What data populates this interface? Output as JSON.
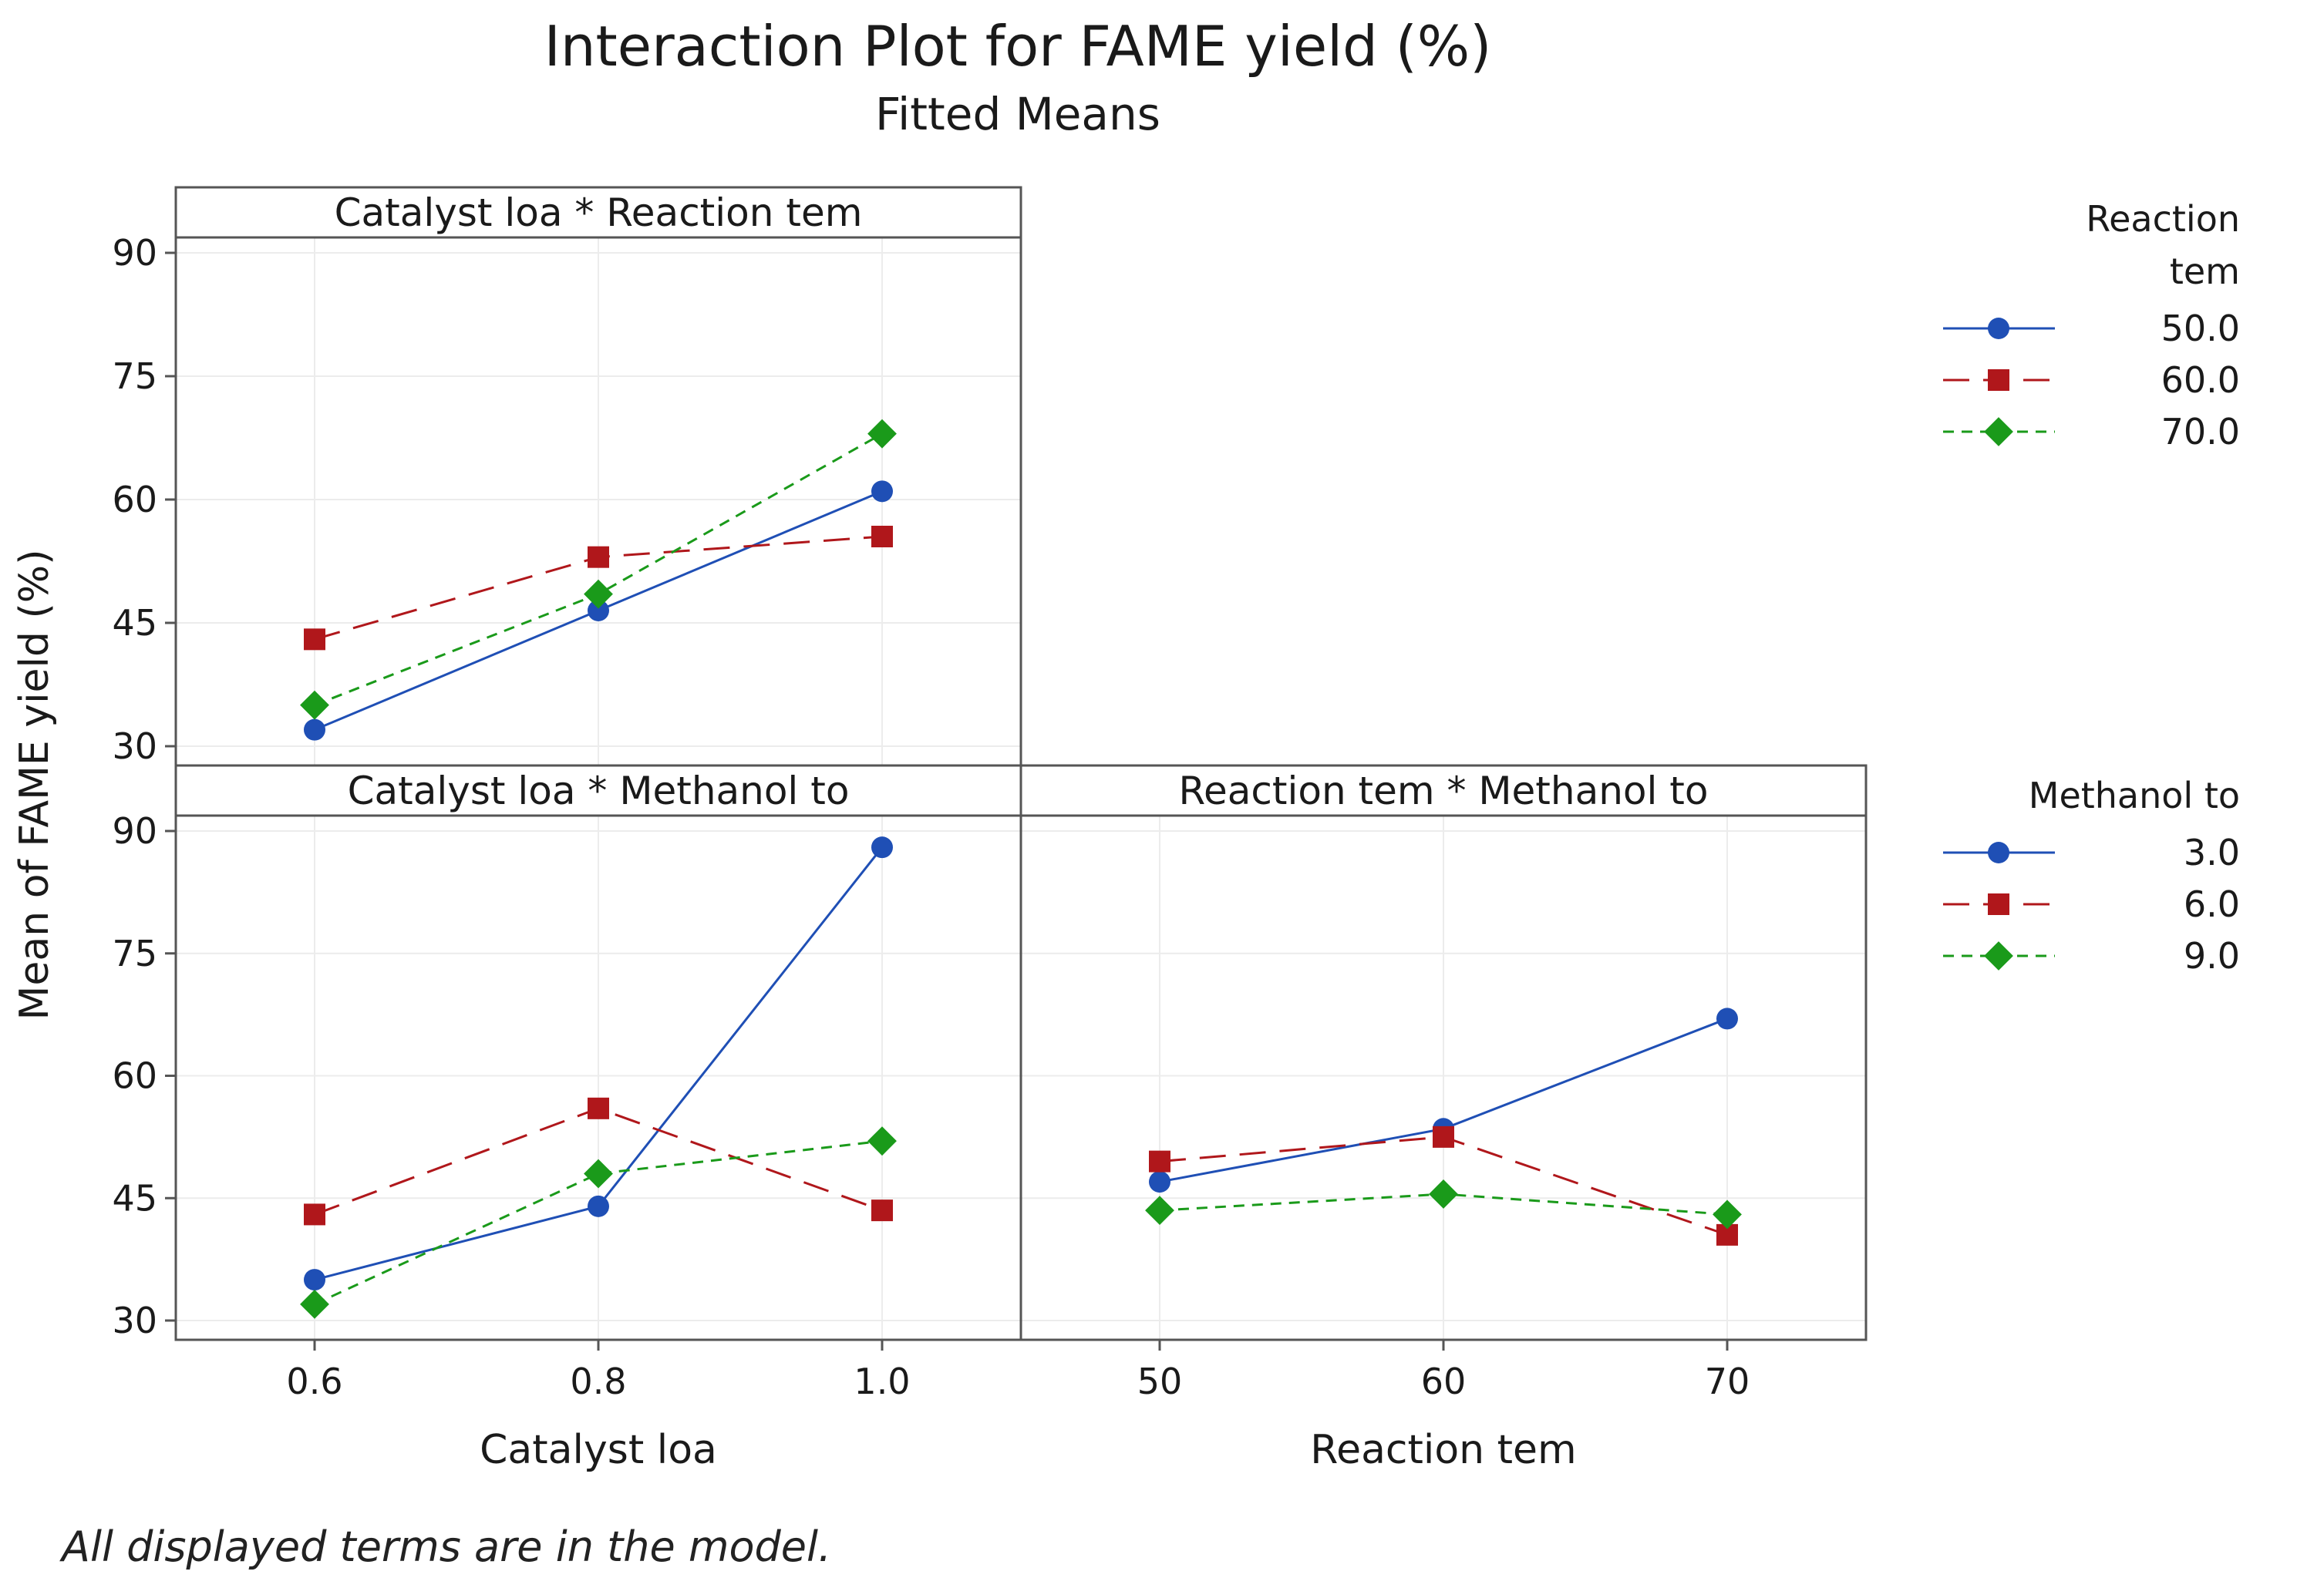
{
  "chart_data": {
    "type": "line",
    "title": "Interaction Plot for FAME yield (%)",
    "subtitle": "Fitted Means",
    "ylabel": "Mean of FAME yield (%)",
    "ylim": [
      30,
      90
    ],
    "yticks": [
      30,
      45,
      60,
      75,
      90
    ],
    "footnote": "All displayed terms are in the model.",
    "legends": [
      {
        "id": "reaction",
        "title": [
          "Reaction",
          "tem"
        ],
        "entries": [
          "50.0",
          "60.0",
          "70.0"
        ]
      },
      {
        "id": "methanol",
        "title": [
          "Methanol to"
        ],
        "entries": [
          "3.0",
          "6.0",
          "9.0"
        ]
      }
    ],
    "panels": [
      {
        "id": "top-left",
        "title": "Catalyst loa * Reaction tem",
        "xlabel": "",
        "x": [
          0.6,
          0.8,
          1.0
        ],
        "xticks": [],
        "legend": "reaction",
        "series": [
          {
            "name": "50.0",
            "values": [
              32.0,
              46.5,
              61.0
            ]
          },
          {
            "name": "60.0",
            "values": [
              43.0,
              53.0,
              55.5
            ]
          },
          {
            "name": "70.0",
            "values": [
              35.0,
              48.5,
              68.0
            ]
          }
        ]
      },
      {
        "id": "bottom-left",
        "title": "Catalyst loa * Methanol to",
        "xlabel": "Catalyst loa",
        "x": [
          0.6,
          0.8,
          1.0
        ],
        "xticks": [
          "0.6",
          "0.8",
          "1.0"
        ],
        "legend": "methanol",
        "series": [
          {
            "name": "3.0",
            "values": [
              35.0,
              44.0,
              88.0
            ]
          },
          {
            "name": "6.0",
            "values": [
              43.0,
              56.0,
              43.5
            ]
          },
          {
            "name": "9.0",
            "values": [
              32.0,
              48.0,
              52.0
            ]
          }
        ]
      },
      {
        "id": "bottom-right",
        "title": "Reaction tem * Methanol to",
        "xlabel": "Reaction tem",
        "x": [
          50,
          60,
          70
        ],
        "xticks": [
          "50",
          "60",
          "70"
        ],
        "legend": "methanol",
        "series": [
          {
            "name": "3.0",
            "values": [
              47.0,
              53.5,
              67.0
            ]
          },
          {
            "name": "6.0",
            "values": [
              49.5,
              52.5,
              40.5
            ]
          },
          {
            "name": "9.0",
            "values": [
              43.5,
              45.5,
              43.0
            ]
          }
        ]
      }
    ]
  },
  "styles": {
    "series_colors": [
      "#1f4fb5",
      "#b0171b",
      "#1a9a1a"
    ],
    "series_markers": [
      "circle",
      "square",
      "diamond"
    ],
    "series_dashes": [
      "",
      "34,18",
      "14,10"
    ],
    "grid_color": "#ececec",
    "frame_color": "#555555"
  }
}
